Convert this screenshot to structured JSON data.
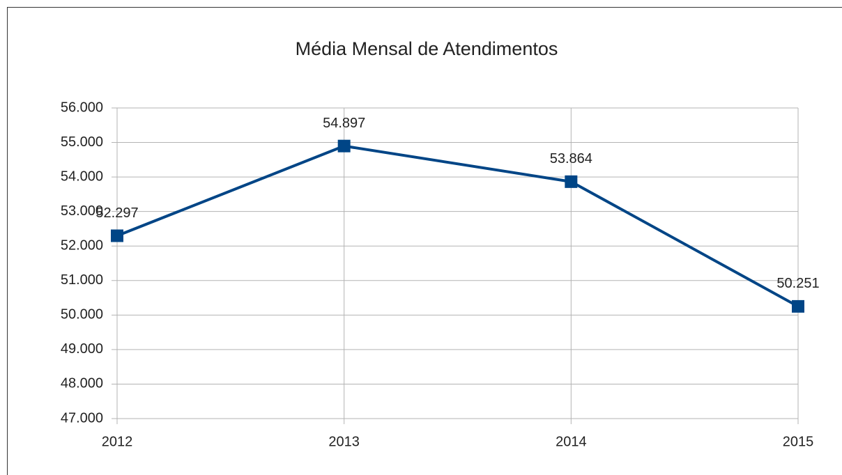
{
  "chart_data": {
    "type": "line",
    "title": "Média Mensal de Atendimentos",
    "categories": [
      "2012",
      "2013",
      "2014",
      "2015"
    ],
    "series": [
      {
        "name": "Média Mensal de Atendimentos",
        "color": "#004586",
        "values": [
          52297,
          54897,
          53864,
          50251
        ],
        "value_labels": [
          "52.297",
          "54.897",
          "53.864",
          "50.251"
        ]
      }
    ],
    "ylim": [
      47000,
      56000
    ],
    "yticks": [
      {
        "value": 47000,
        "label": "47.000"
      },
      {
        "value": 48000,
        "label": "48.000"
      },
      {
        "value": 49000,
        "label": "49.000"
      },
      {
        "value": 50000,
        "label": "50.000"
      },
      {
        "value": 51000,
        "label": "51.000"
      },
      {
        "value": 52000,
        "label": "52.000"
      },
      {
        "value": 53000,
        "label": "53.000"
      },
      {
        "value": 54000,
        "label": "54.000"
      },
      {
        "value": 55000,
        "label": "55.000"
      },
      {
        "value": 56000,
        "label": "56.000"
      }
    ],
    "grid": true
  }
}
